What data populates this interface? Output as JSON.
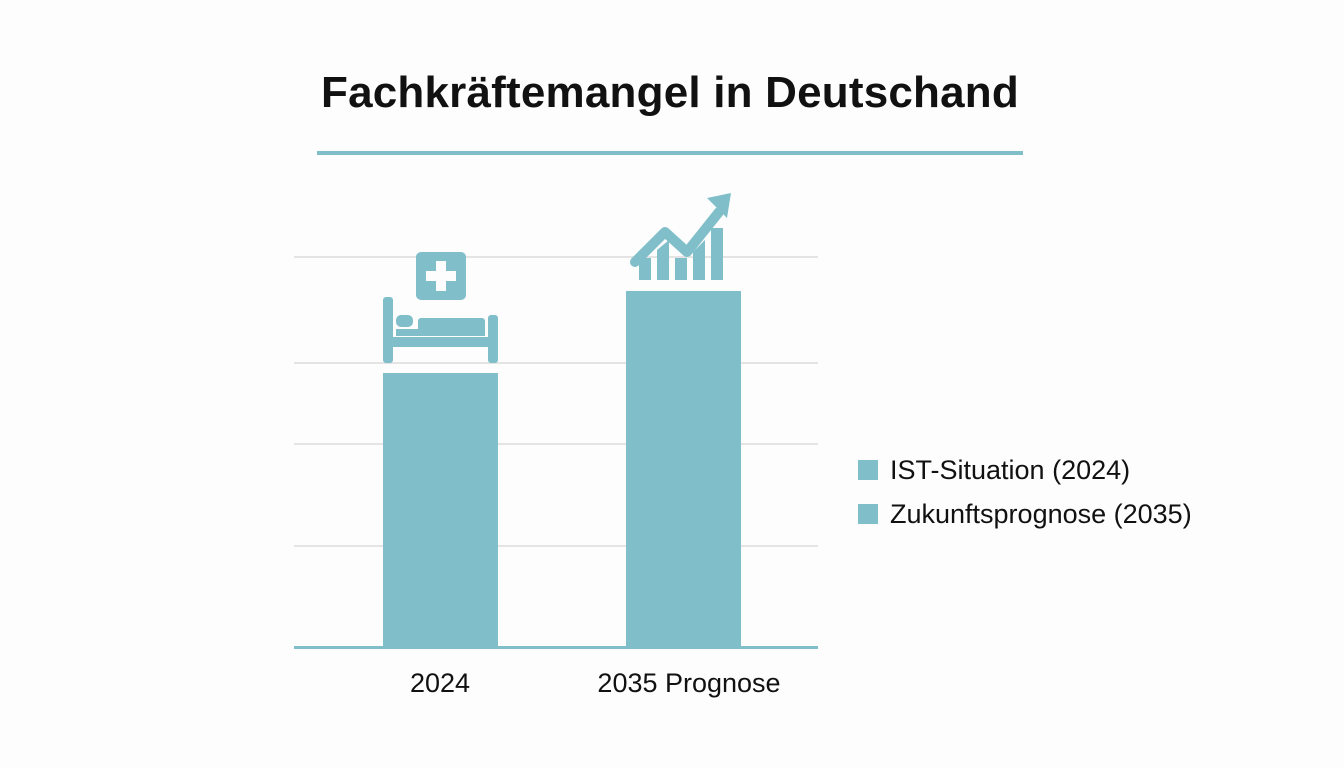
{
  "title": "Fachkräftemangel in Deutschand",
  "colors": {
    "bar": "#80bfc9",
    "grid": "#e4e4e4",
    "text": "#111111",
    "accent_rule": "#80bfc9"
  },
  "icons": {
    "bar_1": "hospital-bed-icon",
    "bar_2": "rising-trend-chart-icon"
  },
  "legend": {
    "items": [
      {
        "label": "IST-Situation (2024)"
      },
      {
        "label": "Zukunftsprognose (2035)"
      }
    ]
  },
  "xaxis": {
    "labels": [
      "2024",
      "2035 Prognose"
    ]
  },
  "chart_data": {
    "type": "bar",
    "title": "Fachkräftemangel in Deutschand",
    "categories": [
      "2024",
      "2035 Prognose"
    ],
    "series": [
      {
        "name": "IST-Situation (2024)",
        "values": [
          70,
          null
        ]
      },
      {
        "name": "Zukunftsprognose (2035)",
        "values": [
          null,
          91
        ]
      }
    ],
    "values": [
      70,
      91
    ],
    "xlabel": "",
    "ylabel": "",
    "ylim": [
      0,
      100
    ],
    "yticks_labeled": false,
    "grid": true,
    "gridlines_relative": [
      25,
      51,
      72,
      100
    ],
    "legend_position": "right",
    "note": "Y-axis unlabeled; values are relative estimates (top gridline = 100)."
  }
}
